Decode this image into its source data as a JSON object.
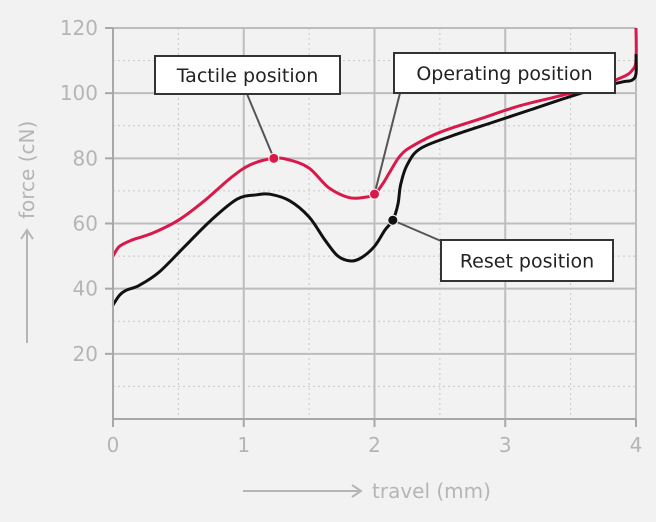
{
  "chart_data": {
    "type": "line",
    "title": "",
    "xlabel": "travel (mm)",
    "ylabel": "force (cN)",
    "xlim": [
      0,
      4
    ],
    "ylim": [
      0,
      120
    ],
    "x_ticks": [
      0,
      1,
      2,
      3,
      4
    ],
    "y_ticks": [
      20,
      40,
      60,
      80,
      100,
      120
    ],
    "grid": true,
    "series": [
      {
        "color": "#d9184b",
        "points": [
          [
            0,
            50
          ],
          [
            0.05,
            53
          ],
          [
            0.15,
            55
          ],
          [
            0.3,
            57
          ],
          [
            0.5,
            61
          ],
          [
            0.7,
            67
          ],
          [
            0.9,
            74
          ],
          [
            1.05,
            78
          ],
          [
            1.23,
            80
          ],
          [
            1.35,
            79.5
          ],
          [
            1.5,
            77
          ],
          [
            1.65,
            71
          ],
          [
            1.8,
            68
          ],
          [
            1.92,
            68
          ],
          [
            2.0,
            69
          ],
          [
            2.06,
            72
          ],
          [
            2.12,
            76
          ],
          [
            2.2,
            81
          ],
          [
            2.3,
            84
          ],
          [
            2.5,
            88
          ],
          [
            2.8,
            92
          ],
          [
            3.1,
            96
          ],
          [
            3.4,
            99
          ],
          [
            3.7,
            102
          ],
          [
            3.9,
            105
          ],
          [
            3.97,
            107
          ],
          [
            4.0,
            110
          ],
          [
            4.0,
            120
          ]
        ]
      },
      {
        "color": "#111111",
        "points": [
          [
            0,
            35
          ],
          [
            0.05,
            38
          ],
          [
            0.1,
            39.5
          ],
          [
            0.2,
            41
          ],
          [
            0.35,
            45
          ],
          [
            0.55,
            53
          ],
          [
            0.75,
            61
          ],
          [
            0.95,
            67.5
          ],
          [
            1.1,
            68.8
          ],
          [
            1.2,
            69
          ],
          [
            1.35,
            67
          ],
          [
            1.5,
            62
          ],
          [
            1.62,
            55
          ],
          [
            1.72,
            50
          ],
          [
            1.82,
            48.5
          ],
          [
            1.9,
            49.5
          ],
          [
            2.0,
            53
          ],
          [
            2.08,
            58
          ],
          [
            2.14,
            61
          ],
          [
            2.18,
            66
          ],
          [
            2.2,
            72
          ],
          [
            2.25,
            78
          ],
          [
            2.35,
            83
          ],
          [
            2.6,
            87
          ],
          [
            2.9,
            91
          ],
          [
            3.2,
            95
          ],
          [
            3.5,
            99
          ],
          [
            3.75,
            102
          ],
          [
            3.9,
            103.5
          ],
          [
            3.97,
            104
          ],
          [
            4.0,
            106
          ],
          [
            4.0,
            112
          ]
        ]
      }
    ],
    "annotations": [
      {
        "label": "Tactile position",
        "x": 1.23,
        "y": 80,
        "color": "#d9184b"
      },
      {
        "label": "Operating position",
        "x": 2.0,
        "y": 69,
        "color": "#d9184b"
      },
      {
        "label": "Reset position",
        "x": 2.14,
        "y": 61,
        "color": "#111111"
      }
    ]
  }
}
